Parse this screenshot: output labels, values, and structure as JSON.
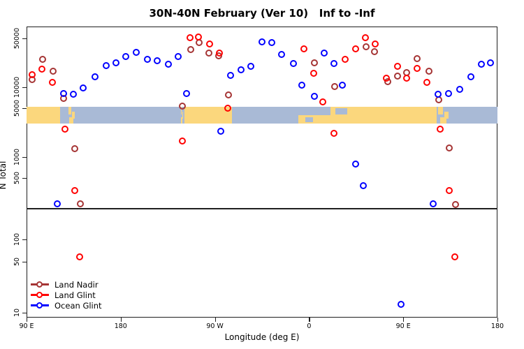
{
  "title": "30N-40N February (Ver 10)   Inf to -Inf",
  "chart_data": {
    "type": "scatter",
    "title": "30N-40N February (Ver 10)   Inf to -Inf",
    "xlabel": "Longitude (deg E)",
    "ylabel": "N Total",
    "x_axis": {
      "span_deg": 450,
      "start_deg": 90,
      "ticks": [
        {
          "deg": 90,
          "label": "90 E"
        },
        {
          "deg": 180,
          "label": "180"
        },
        {
          "deg": 270,
          "label": "90 W"
        },
        {
          "deg": 360,
          "label": "0"
        },
        {
          "deg": 450,
          "label": "90 E"
        },
        {
          "deg": 540,
          "label": "180"
        }
      ]
    },
    "y_axis": {
      "scale": "log",
      "axis_break": true,
      "upper_ticks": [
        {
          "value": 50000,
          "label": "50000"
        },
        {
          "value": 10000,
          "label": "10000"
        },
        {
          "value": 5000,
          "label": "5000"
        },
        {
          "value": 1000,
          "label": "1000"
        },
        {
          "value": 500,
          "label": "500"
        }
      ],
      "lower_ticks": [
        {
          "value": 100,
          "label": "100"
        },
        {
          "value": 50,
          "label": "50"
        },
        {
          "value": 10,
          "label": "10"
        }
      ]
    },
    "map_colors": {
      "land": "#FBD77D",
      "ocean": "#A9BAD6"
    },
    "land_ocean_band": {
      "segments": [
        {
          "from_deg": 90,
          "to_deg": 122,
          "surface": "land"
        },
        {
          "from_deg": 122,
          "to_deg": 129,
          "surface": "ocean"
        },
        {
          "from_deg": 129,
          "to_deg": 140,
          "surface": "mix"
        },
        {
          "from_deg": 140,
          "to_deg": 237,
          "surface": "ocean"
        },
        {
          "from_deg": 237,
          "to_deg": 241,
          "surface": "mix"
        },
        {
          "from_deg": 241,
          "to_deg": 286,
          "surface": "land"
        },
        {
          "from_deg": 286,
          "to_deg": 350,
          "surface": "ocean"
        },
        {
          "from_deg": 350,
          "to_deg": 403,
          "surface": "med"
        },
        {
          "from_deg": 403,
          "to_deg": 482,
          "surface": "land"
        },
        {
          "from_deg": 482,
          "to_deg": 500,
          "surface": "mix"
        },
        {
          "from_deg": 500,
          "to_deg": 540,
          "surface": "ocean"
        }
      ]
    },
    "series": [
      {
        "name": "Land Nadir",
        "color": "#A53434",
        "points": [
          [
            105.4,
            25100
          ],
          [
            95.3,
            12900
          ],
          [
            115.4,
            17000
          ],
          [
            125.4,
            6920
          ],
          [
            136.1,
            1320
          ],
          [
            141.4,
            214
          ],
          [
            238.9,
            5370
          ],
          [
            246.9,
            34700
          ],
          [
            254.9,
            43700
          ],
          [
            264.3,
            30900
          ],
          [
            273.6,
            28200
          ],
          [
            282.9,
            7760
          ],
          [
            365.1,
            22400
          ],
          [
            384.4,
            10200
          ],
          [
            414.5,
            38000
          ],
          [
            422.5,
            32400
          ],
          [
            435.2,
            12000
          ],
          [
            444.5,
            14500
          ],
          [
            453.2,
            16200
          ],
          [
            463.2,
            25700
          ],
          [
            474.6,
            17000
          ],
          [
            483.9,
            6610
          ],
          [
            493.9,
            1350
          ],
          [
            499.9,
            209
          ]
        ]
      },
      {
        "name": "Land Glint",
        "color": "#FF0000",
        "points": [
          [
            95.3,
            15100
          ],
          [
            104.7,
            18200
          ],
          [
            114.7,
            11750
          ],
          [
            126.7,
            2510
          ],
          [
            136.1,
            331
          ],
          [
            141.0,
            58
          ],
          [
            238.9,
            1700
          ],
          [
            246.2,
            51300
          ],
          [
            254.3,
            52500
          ],
          [
            264.9,
            41700
          ],
          [
            274.3,
            30900
          ],
          [
            282.3,
            5010
          ],
          [
            355.1,
            35500
          ],
          [
            364.4,
            15850
          ],
          [
            373.1,
            6170
          ],
          [
            383.8,
            2190
          ],
          [
            394.4,
            25100
          ],
          [
            404.5,
            35500
          ],
          [
            413.8,
            51300
          ],
          [
            423.2,
            41700
          ],
          [
            433.9,
            13500
          ],
          [
            444.5,
            20000
          ],
          [
            453.2,
            13500
          ],
          [
            463.2,
            18600
          ],
          [
            472.6,
            11750
          ],
          [
            485.2,
            2510
          ],
          [
            493.9,
            331
          ],
          [
            499.4,
            58
          ]
        ]
      },
      {
        "name": "Ocean Glint",
        "color": "#0000FF",
        "points": [
          [
            119.4,
            214
          ],
          [
            125.4,
            8130
          ],
          [
            134.7,
            7940
          ],
          [
            144.1,
            9770
          ],
          [
            155.4,
            14130
          ],
          [
            166.1,
            20400
          ],
          [
            175.5,
            22400
          ],
          [
            184.8,
            27500
          ],
          [
            194.8,
            31600
          ],
          [
            205.5,
            25100
          ],
          [
            214.8,
            24000
          ],
          [
            225.5,
            21400
          ],
          [
            234.9,
            27500
          ],
          [
            242.9,
            8130
          ],
          [
            275.6,
            2340
          ],
          [
            285.0,
            14800
          ],
          [
            295.0,
            17800
          ],
          [
            304.3,
            20000
          ],
          [
            315.0,
            44700
          ],
          [
            324.3,
            43700
          ],
          [
            333.7,
            29500
          ],
          [
            345.1,
            21900
          ],
          [
            353.1,
            10700
          ],
          [
            365.1,
            7410
          ],
          [
            374.4,
            30900
          ],
          [
            383.8,
            21900
          ],
          [
            391.7,
            10700
          ],
          [
            404.5,
            794
          ],
          [
            411.8,
            389
          ],
          [
            447.9,
            13
          ],
          [
            478.6,
            214
          ],
          [
            483.2,
            7940
          ],
          [
            493.2,
            8130
          ],
          [
            503.9,
            9330
          ],
          [
            514.6,
            14130
          ],
          [
            524.6,
            21400
          ],
          [
            533.3,
            22400
          ]
        ]
      }
    ],
    "legend": {
      "position": "bottom-left",
      "entries": [
        {
          "label": "Land Nadir",
          "color": "#A53434"
        },
        {
          "label": "Land Glint",
          "color": "#FF0000"
        },
        {
          "label": "Ocean Glint",
          "color": "#0000FF"
        }
      ]
    }
  }
}
